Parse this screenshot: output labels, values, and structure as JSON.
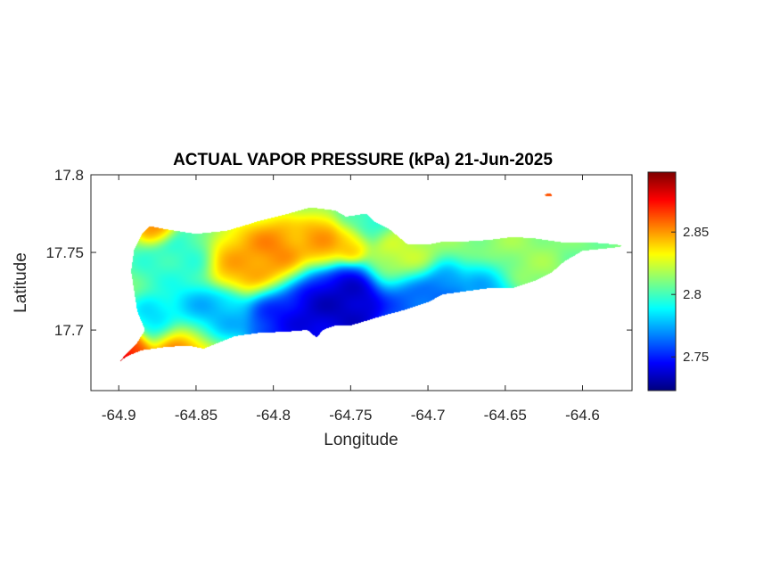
{
  "map": {
    "title": "ACTUAL VAPOR PRESSURE (kPa) 21-Jun-2025",
    "xlabel": "Longitude",
    "ylabel": "Latitude",
    "colormap": "jet",
    "xticks": [
      -64.9,
      -64.85,
      -64.8,
      -64.75,
      -64.7,
      -64.65,
      -64.6
    ],
    "xtick_labels": [
      "-64.9",
      "-64.85",
      "-64.8",
      "-64.75",
      "-64.7",
      "-64.65",
      "-64.6"
    ],
    "yticks": [
      17.7,
      17.75,
      17.8
    ],
    "ytick_labels": [
      "17.7",
      "17.75",
      "17.8"
    ],
    "xlim": [
      -64.918,
      -64.568
    ],
    "ylim": [
      17.661,
      17.8
    ],
    "colorbar": {
      "range": [
        2.723,
        2.898
      ],
      "ticks": [
        2.75,
        2.8,
        2.85
      ],
      "tick_labels": [
        "2.75",
        "2.8",
        "2.85"
      ]
    },
    "grid": false
  },
  "chart_data": {
    "type": "heatmap",
    "title": "ACTUAL VAPOR PRESSURE (kPa) 21-Jun-2025",
    "xlabel": "Longitude",
    "ylabel": "Latitude",
    "xlim": [
      -64.918,
      -64.568
    ],
    "ylim": [
      17.661,
      17.8
    ],
    "value_range": [
      2.723,
      2.898
    ],
    "colormap": "jet",
    "region_outline": [
      [
        -64.88,
        17.767
      ],
      [
        -64.87,
        17.765
      ],
      [
        -64.85,
        17.762
      ],
      [
        -64.83,
        17.764
      ],
      [
        -64.81,
        17.77
      ],
      [
        -64.79,
        17.775
      ],
      [
        -64.776,
        17.779
      ],
      [
        -64.76,
        17.777
      ],
      [
        -64.753,
        17.773
      ],
      [
        -64.74,
        17.775
      ],
      [
        -64.735,
        17.77
      ],
      [
        -64.725,
        17.765
      ],
      [
        -64.713,
        17.755
      ],
      [
        -64.7,
        17.755
      ],
      [
        -64.69,
        17.757
      ],
      [
        -64.676,
        17.757
      ],
      [
        -64.66,
        17.758
      ],
      [
        -64.645,
        17.76
      ],
      [
        -64.63,
        17.759
      ],
      [
        -64.61,
        17.756
      ],
      [
        -64.6,
        17.756
      ],
      [
        -64.59,
        17.756
      ],
      [
        -64.578,
        17.755
      ],
      [
        -64.574,
        17.754
      ],
      [
        -64.58,
        17.753
      ],
      [
        -64.59,
        17.752
      ],
      [
        -64.6,
        17.751
      ],
      [
        -64.612,
        17.744
      ],
      [
        -64.62,
        17.737
      ],
      [
        -64.63,
        17.732
      ],
      [
        -64.645,
        17.727
      ],
      [
        -64.66,
        17.727
      ],
      [
        -64.675,
        17.725
      ],
      [
        -64.69,
        17.723
      ],
      [
        -64.7,
        17.718
      ],
      [
        -64.715,
        17.713
      ],
      [
        -64.73,
        17.709
      ],
      [
        -64.74,
        17.706
      ],
      [
        -64.75,
        17.703
      ],
      [
        -64.76,
        17.703
      ],
      [
        -64.768,
        17.7
      ],
      [
        -64.772,
        17.695
      ],
      [
        -64.778,
        17.7
      ],
      [
        -64.79,
        17.699
      ],
      [
        -64.81,
        17.698
      ],
      [
        -64.825,
        17.696
      ],
      [
        -64.835,
        17.692
      ],
      [
        -64.845,
        17.688
      ],
      [
        -64.855,
        17.69
      ],
      [
        -64.87,
        17.689
      ],
      [
        -64.885,
        17.687
      ],
      [
        -64.895,
        17.683
      ],
      [
        -64.9,
        17.679
      ],
      [
        -64.895,
        17.685
      ],
      [
        -64.888,
        17.692
      ],
      [
        -64.883,
        17.7
      ],
      [
        -64.888,
        17.712
      ],
      [
        -64.89,
        17.725
      ],
      [
        -64.892,
        17.738
      ],
      [
        -64.89,
        17.752
      ],
      [
        -64.885,
        17.762
      ]
    ],
    "value_features": [
      {
        "lon": -64.9,
        "lat": 17.679,
        "value": 2.895,
        "sigma": 0.005
      },
      {
        "lon": -64.892,
        "lat": 17.687,
        "value": 2.875,
        "sigma": 0.007
      },
      {
        "lon": -64.86,
        "lat": 17.69,
        "value": 2.86,
        "sigma": 0.01
      },
      {
        "lon": -64.876,
        "lat": 17.766,
        "value": 2.86,
        "sigma": 0.006
      },
      {
        "lon": -64.8,
        "lat": 17.745,
        "value": 2.858,
        "sigma": 0.012
      },
      {
        "lon": -64.822,
        "lat": 17.742,
        "value": 2.848,
        "sigma": 0.01
      },
      {
        "lon": -64.77,
        "lat": 17.756,
        "value": 2.852,
        "sigma": 0.008
      },
      {
        "lon": -64.75,
        "lat": 17.756,
        "value": 2.848,
        "sigma": 0.006
      },
      {
        "lon": -64.622,
        "lat": 17.787,
        "value": 2.87,
        "sigma": 0.003
      },
      {
        "lon": -64.775,
        "lat": 17.713,
        "value": 2.73,
        "sigma": 0.014
      },
      {
        "lon": -64.748,
        "lat": 17.717,
        "value": 2.728,
        "sigma": 0.012
      },
      {
        "lon": -64.795,
        "lat": 17.708,
        "value": 2.745,
        "sigma": 0.012
      },
      {
        "lon": -64.715,
        "lat": 17.72,
        "value": 2.755,
        "sigma": 0.01
      },
      {
        "lon": -64.69,
        "lat": 17.722,
        "value": 2.76,
        "sigma": 0.009
      },
      {
        "lon": -64.66,
        "lat": 17.726,
        "value": 2.77,
        "sigma": 0.009
      },
      {
        "lon": -64.85,
        "lat": 17.71,
        "value": 2.772,
        "sigma": 0.01
      },
      {
        "lon": -64.875,
        "lat": 17.706,
        "value": 2.778,
        "sigma": 0.008
      },
      {
        "lon": -64.83,
        "lat": 17.712,
        "value": 2.775,
        "sigma": 0.008
      },
      {
        "lon": -64.865,
        "lat": 17.744,
        "value": 2.795,
        "sigma": 0.012
      },
      {
        "lon": -64.74,
        "lat": 17.77,
        "value": 2.795,
        "sigma": 0.008
      },
      {
        "lon": -64.64,
        "lat": 17.745,
        "value": 2.815,
        "sigma": 0.012
      },
      {
        "lon": -64.6,
        "lat": 17.754,
        "value": 2.808,
        "sigma": 0.008
      },
      {
        "lon": -64.72,
        "lat": 17.745,
        "value": 2.825,
        "sigma": 0.01
      }
    ],
    "background_value": 2.812
  }
}
